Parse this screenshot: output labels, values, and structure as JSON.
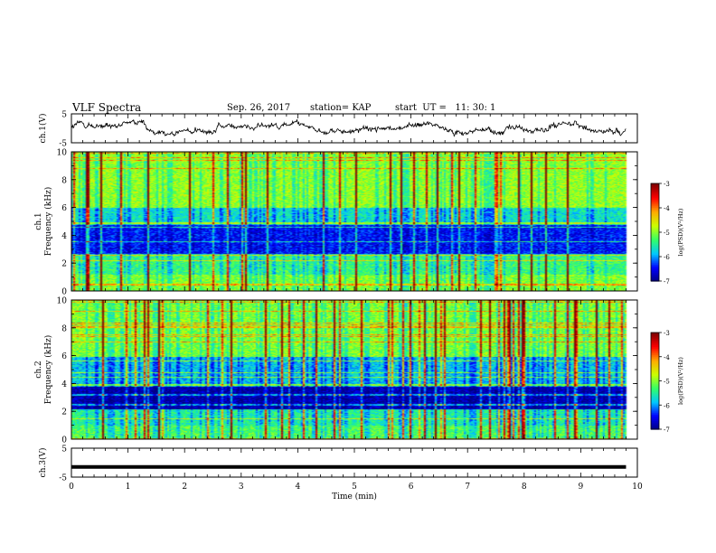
{
  "header": {
    "title": "VLF Spectra",
    "date": "Sep. 26, 2017",
    "station": "station= KAP",
    "start": "start  UT =   11: 30: 1"
  },
  "chart_data": [
    {
      "type": "line",
      "panel": "ch1-waveform",
      "ylabel": "ch.1(V)",
      "ylim": [
        -5,
        5
      ],
      "yticks": [
        "5",
        "-5"
      ],
      "xlim": [
        0,
        10
      ],
      "data_end": 9.8
    },
    {
      "type": "heatmap",
      "panel": "ch1-spectrogram",
      "ylabel": "ch.1\nFrequency  (kHz)",
      "ylabel_line1": "ch.1",
      "ylabel_line2": "Frequency  (kHz)",
      "ylim": [
        0,
        10
      ],
      "yticks": [
        "0",
        "2",
        "4",
        "6",
        "8",
        "10"
      ],
      "xlim": [
        0,
        10
      ],
      "data_end": 9.8,
      "colorbar": {
        "label": "log(PSD)(V²/Hz)",
        "range": [
          -7,
          -3
        ],
        "ticks": [
          "-3",
          "-4",
          "-5",
          "-6",
          "-7"
        ]
      }
    },
    {
      "type": "heatmap",
      "panel": "ch2-spectrogram",
      "ylabel_line1": "ch.2",
      "ylabel_line2": "Frequency  (kHz)",
      "ylim": [
        0,
        10
      ],
      "yticks": [
        "0",
        "2",
        "4",
        "6",
        "8",
        "10"
      ],
      "xlim": [
        0,
        10
      ],
      "data_end": 9.8,
      "colorbar": {
        "label": "log(PSD)(V²/Hz)",
        "range": [
          -7,
          -3
        ],
        "ticks": [
          "-3",
          "-4",
          "-5",
          "-6",
          "-7"
        ]
      }
    },
    {
      "type": "line",
      "panel": "ch3-waveform",
      "ylabel": "ch.3(V)",
      "ylim": [
        -5,
        5
      ],
      "yticks": [
        "5",
        "-5"
      ],
      "xlim": [
        0,
        10
      ],
      "data_end": 9.8,
      "constant_level": -1.5,
      "xlabel": "Time  (min)",
      "xticks": [
        "0",
        "1",
        "2",
        "3",
        "4",
        "5",
        "6",
        "7",
        "8",
        "9",
        "10"
      ]
    }
  ],
  "colors": {
    "colormap": [
      "#00007f",
      "#0000ff",
      "#00c8ff",
      "#33ff66",
      "#ccff00",
      "#ffaa00",
      "#ff0000",
      "#7f0000"
    ],
    "axis": "#000000",
    "trace": "#000000"
  }
}
